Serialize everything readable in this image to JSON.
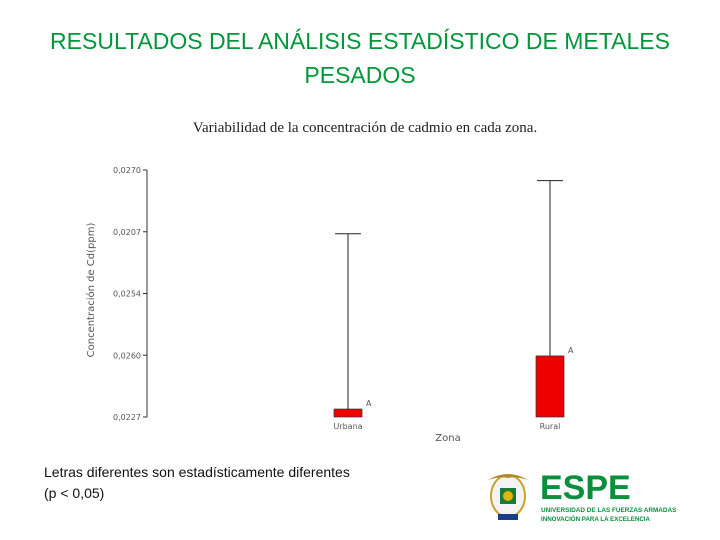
{
  "slide": {
    "title_line1": "RESULTADOS DEL ANÁLISIS ESTADÍSTICO DE METALES",
    "title_line2": "PESADOS",
    "footnote_line1": "Letras diferentes son estadísticamente diferentes",
    "footnote_line2": "(p < 0,05)"
  },
  "logo": {
    "name": "ESPE",
    "tagline1": "UNIVERSIDAD DE LAS FUERZAS ARMADAS",
    "tagline2": "INNOVACIÓN PARA LA EXCELENCIA",
    "color": "#0a8f3c"
  },
  "chart_data": {
    "type": "bar",
    "title": "Variabilidad de la concentración de cadmio en cada zona.",
    "xlabel": "Zona",
    "ylabel": "Concentración de Cd(ppm)",
    "categories": [
      "Urbana",
      "Rural"
    ],
    "values": [
      0.0228,
      0.0248
    ],
    "error_upper": [
      0.0294,
      0.0314
    ],
    "group_letters": [
      "A",
      "A"
    ],
    "yticks": [
      "0,0270",
      "0,0207",
      "0,0254",
      "0,0260",
      "0,0227"
    ],
    "ylim": [
      0.0225,
      0.0318
    ],
    "bar_color": "#ee0000",
    "grid": false,
    "legend": "none"
  }
}
